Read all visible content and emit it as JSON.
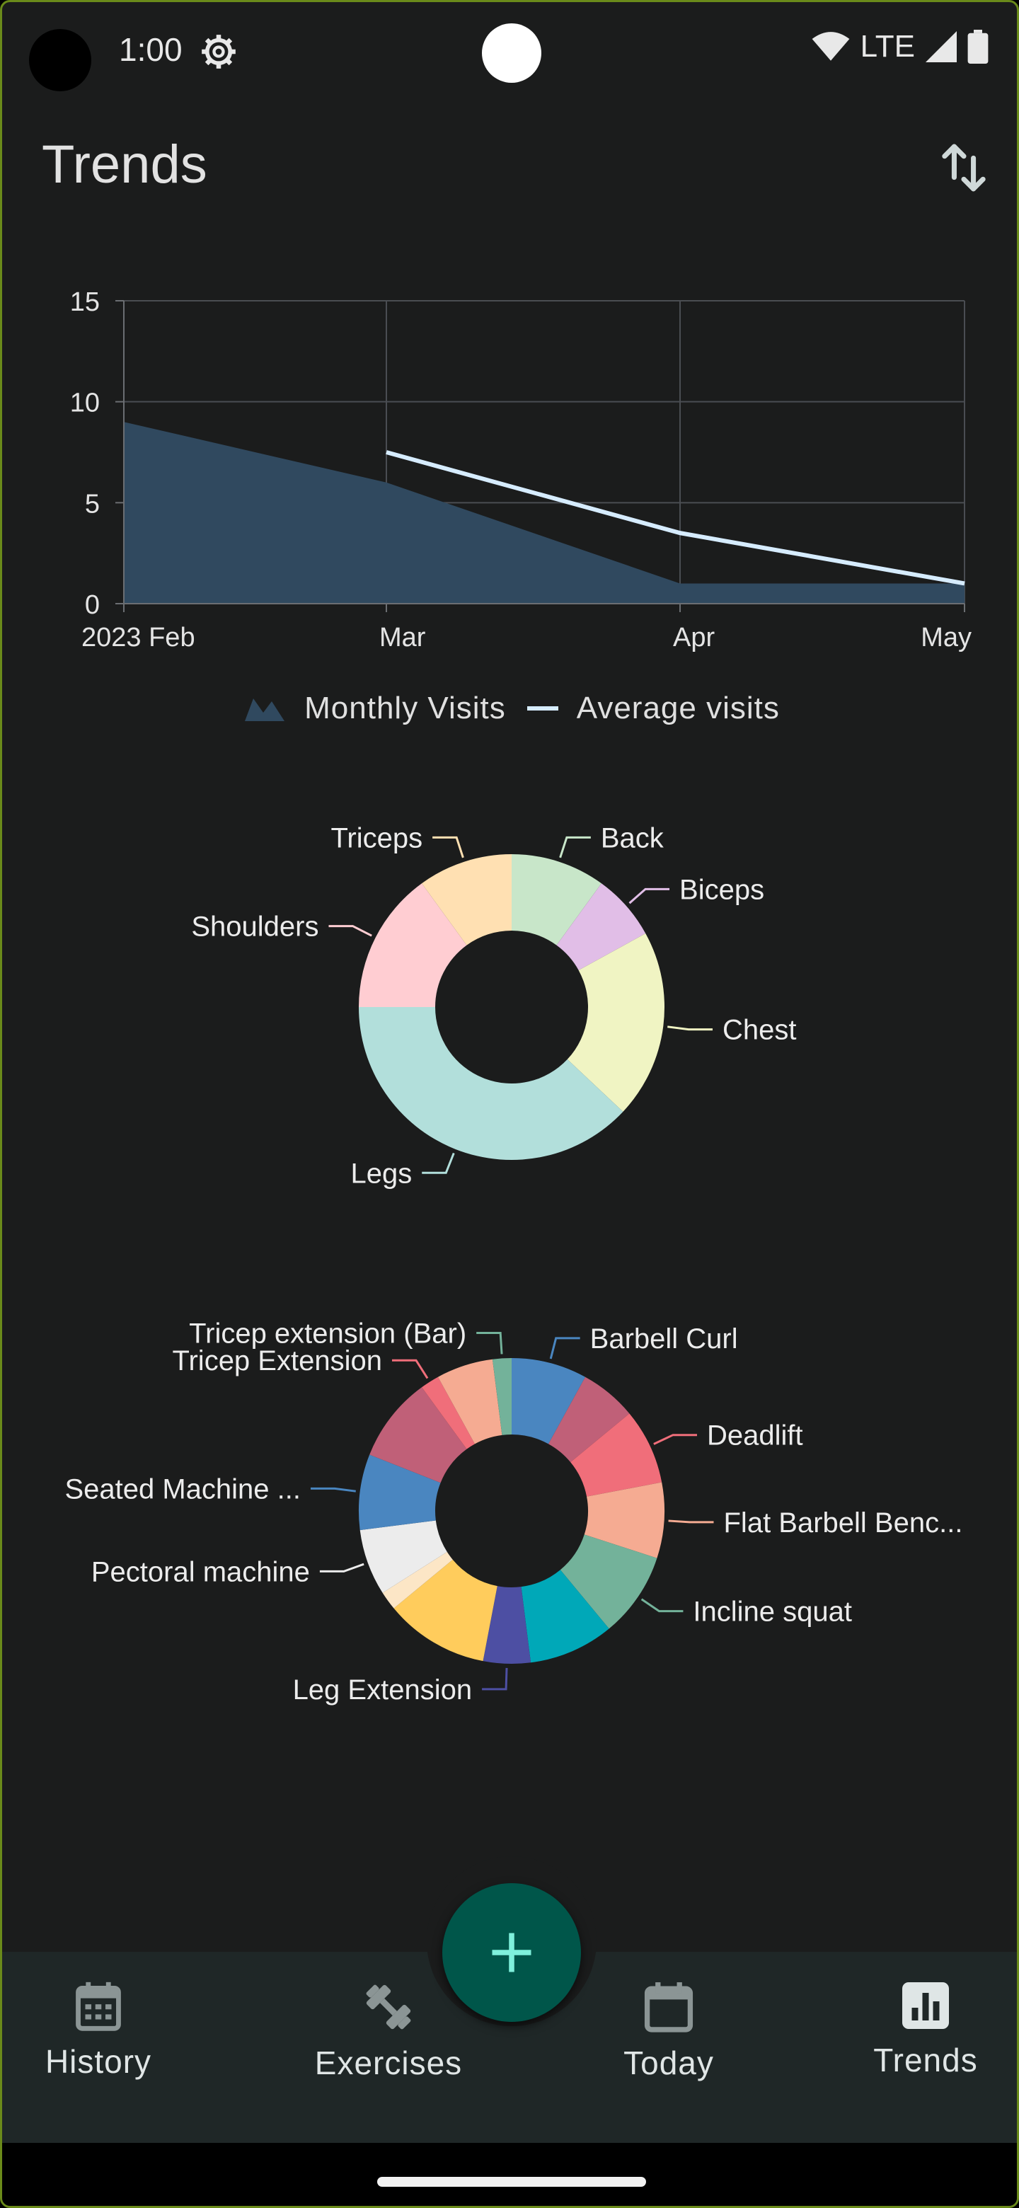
{
  "status_bar": {
    "time": "1:00",
    "network": "LTE",
    "icons": [
      "gear-icon",
      "wifi-icon",
      "signal-icon",
      "battery-icon"
    ]
  },
  "app_bar": {
    "title": "Trends",
    "action_icon": "swap-vertical-icon"
  },
  "colors": {
    "background": "#1b1c1c",
    "area": "#30495f",
    "line": "#d6ecff",
    "accent": "#00564a",
    "fab_plus": "#7ff0dc",
    "nav_bg": "#1f2727"
  },
  "chart_data": [
    {
      "type": "area",
      "x_labels": [
        "2023 Feb",
        "Mar",
        "Apr",
        "May"
      ],
      "ylim": [
        0,
        15
      ],
      "y_ticks": [
        "0",
        "5",
        "10",
        "15"
      ],
      "grid": true,
      "legend_position": "bottom",
      "series": [
        {
          "name": "Monthly Visits",
          "type": "area",
          "x": [
            "2023 Feb",
            "Mar",
            "Apr",
            "May"
          ],
          "values": [
            9,
            6,
            1,
            1
          ]
        },
        {
          "name": "Average visits",
          "type": "line",
          "x": [
            "Mar",
            "Apr",
            "May"
          ],
          "values": [
            7.5,
            3.5,
            1
          ]
        }
      ]
    },
    {
      "type": "pie",
      "donut": true,
      "slices": [
        {
          "label": "Back",
          "value": 10,
          "color": "#c8e6c9"
        },
        {
          "label": "Biceps",
          "value": 7,
          "color": "#e1bee7"
        },
        {
          "label": "Chest",
          "value": 20,
          "color": "#f0f4c3"
        },
        {
          "label": "Legs",
          "value": 38,
          "color": "#b2dfdb"
        },
        {
          "label": "Shoulders",
          "value": 15,
          "color": "#ffcdd2"
        },
        {
          "label": "Triceps",
          "value": 10,
          "color": "#ffe0b2"
        }
      ]
    },
    {
      "type": "pie",
      "donut": true,
      "slices": [
        {
          "label": "Barbell Curl",
          "value": 8,
          "color": "#4a86c0"
        },
        {
          "label": "",
          "value": 6,
          "color": "#c06078"
        },
        {
          "label": "Deadlift",
          "value": 8,
          "color": "#f06e7a"
        },
        {
          "label": "Flat Barbell Benc...",
          "value": 8,
          "color": "#f5ab92"
        },
        {
          "label": "Incline squat",
          "value": 9,
          "color": "#73b29a"
        },
        {
          "label": "",
          "value": 9,
          "color": "#00a8b8"
        },
        {
          "label": "Leg Extension",
          "value": 5,
          "color": "#4d4fa3"
        },
        {
          "label": "",
          "value": 11,
          "color": "#ffcc5c"
        },
        {
          "label": "",
          "value": 2,
          "color": "#fce6c6"
        },
        {
          "label": "Pectoral machine",
          "value": 7,
          "color": "#ececec"
        },
        {
          "label": "Seated Machine ...",
          "value": 8,
          "color": "#4a86c0"
        },
        {
          "label": "",
          "value": 9,
          "color": "#c06078"
        },
        {
          "label": "Tricep Extension",
          "value": 2,
          "color": "#f06e7a"
        },
        {
          "label": "",
          "value": 6,
          "color": "#f5ab92"
        },
        {
          "label": "Tricep extension (Bar)",
          "value": 2,
          "color": "#73b29a"
        }
      ]
    }
  ],
  "fab": {
    "icon": "plus-icon"
  },
  "bottom_nav": [
    {
      "label": "History",
      "icon": "calendar-grid-icon"
    },
    {
      "label": "Exercises",
      "icon": "dumbbell-icon"
    },
    {
      "label": "Today",
      "icon": "calendar-icon"
    },
    {
      "label": "Trends",
      "icon": "bar-chart-icon"
    }
  ]
}
